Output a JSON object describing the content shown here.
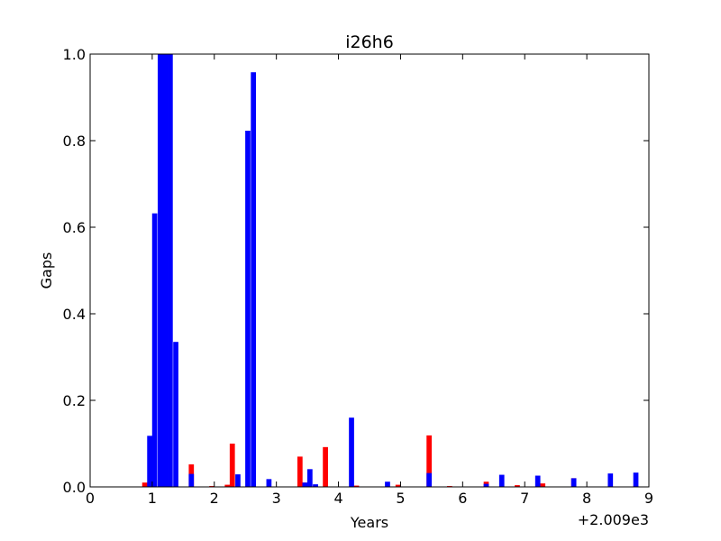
{
  "chart_data": {
    "type": "bar",
    "title": "i26h6",
    "xlabel": "Years",
    "ylabel": "Gaps",
    "xlim": [
      0,
      9
    ],
    "ylim": [
      0,
      1
    ],
    "x_offset_label": "+2.009e3",
    "xticks": [
      "0",
      "1",
      "2",
      "3",
      "4",
      "5",
      "6",
      "7",
      "8",
      "9"
    ],
    "yticks": [
      "0.0",
      "0.2",
      "0.4",
      "0.6",
      "0.8",
      "1.0"
    ],
    "grid": false,
    "bar_width": 0.083,
    "series": [
      {
        "color": "#ff0000",
        "x": [
          0.88,
          1.63,
          1.96,
          2.21,
          2.29,
          3.38,
          3.46,
          3.63,
          3.79,
          4.29,
          4.96,
          5.46,
          5.79,
          6.38,
          6.88,
          7.29,
          7.79,
          8.79
        ],
        "values": [
          0.01,
          0.052,
          0.002,
          0.005,
          0.1,
          0.07,
          0.01,
          0.005,
          0.092,
          0.003,
          0.005,
          0.119,
          0.002,
          0.012,
          0.004,
          0.008,
          0.02,
          0.003
        ]
      },
      {
        "color": "#0000ff",
        "x": [
          0.96,
          1.04,
          1.13,
          1.21,
          1.29,
          1.38,
          1.63,
          2.38,
          2.54,
          2.63,
          2.88,
          3.46,
          3.54,
          3.63,
          4.21,
          4.79,
          5.46,
          6.38,
          6.63,
          7.21,
          7.79,
          8.38,
          8.79
        ],
        "values": [
          0.118,
          0.632,
          1.0,
          1.0,
          1.0,
          0.335,
          0.03,
          0.029,
          0.823,
          0.958,
          0.018,
          0.01,
          0.041,
          0.006,
          0.16,
          0.012,
          0.032,
          0.007,
          0.028,
          0.026,
          0.02,
          0.031,
          0.033
        ]
      }
    ]
  }
}
